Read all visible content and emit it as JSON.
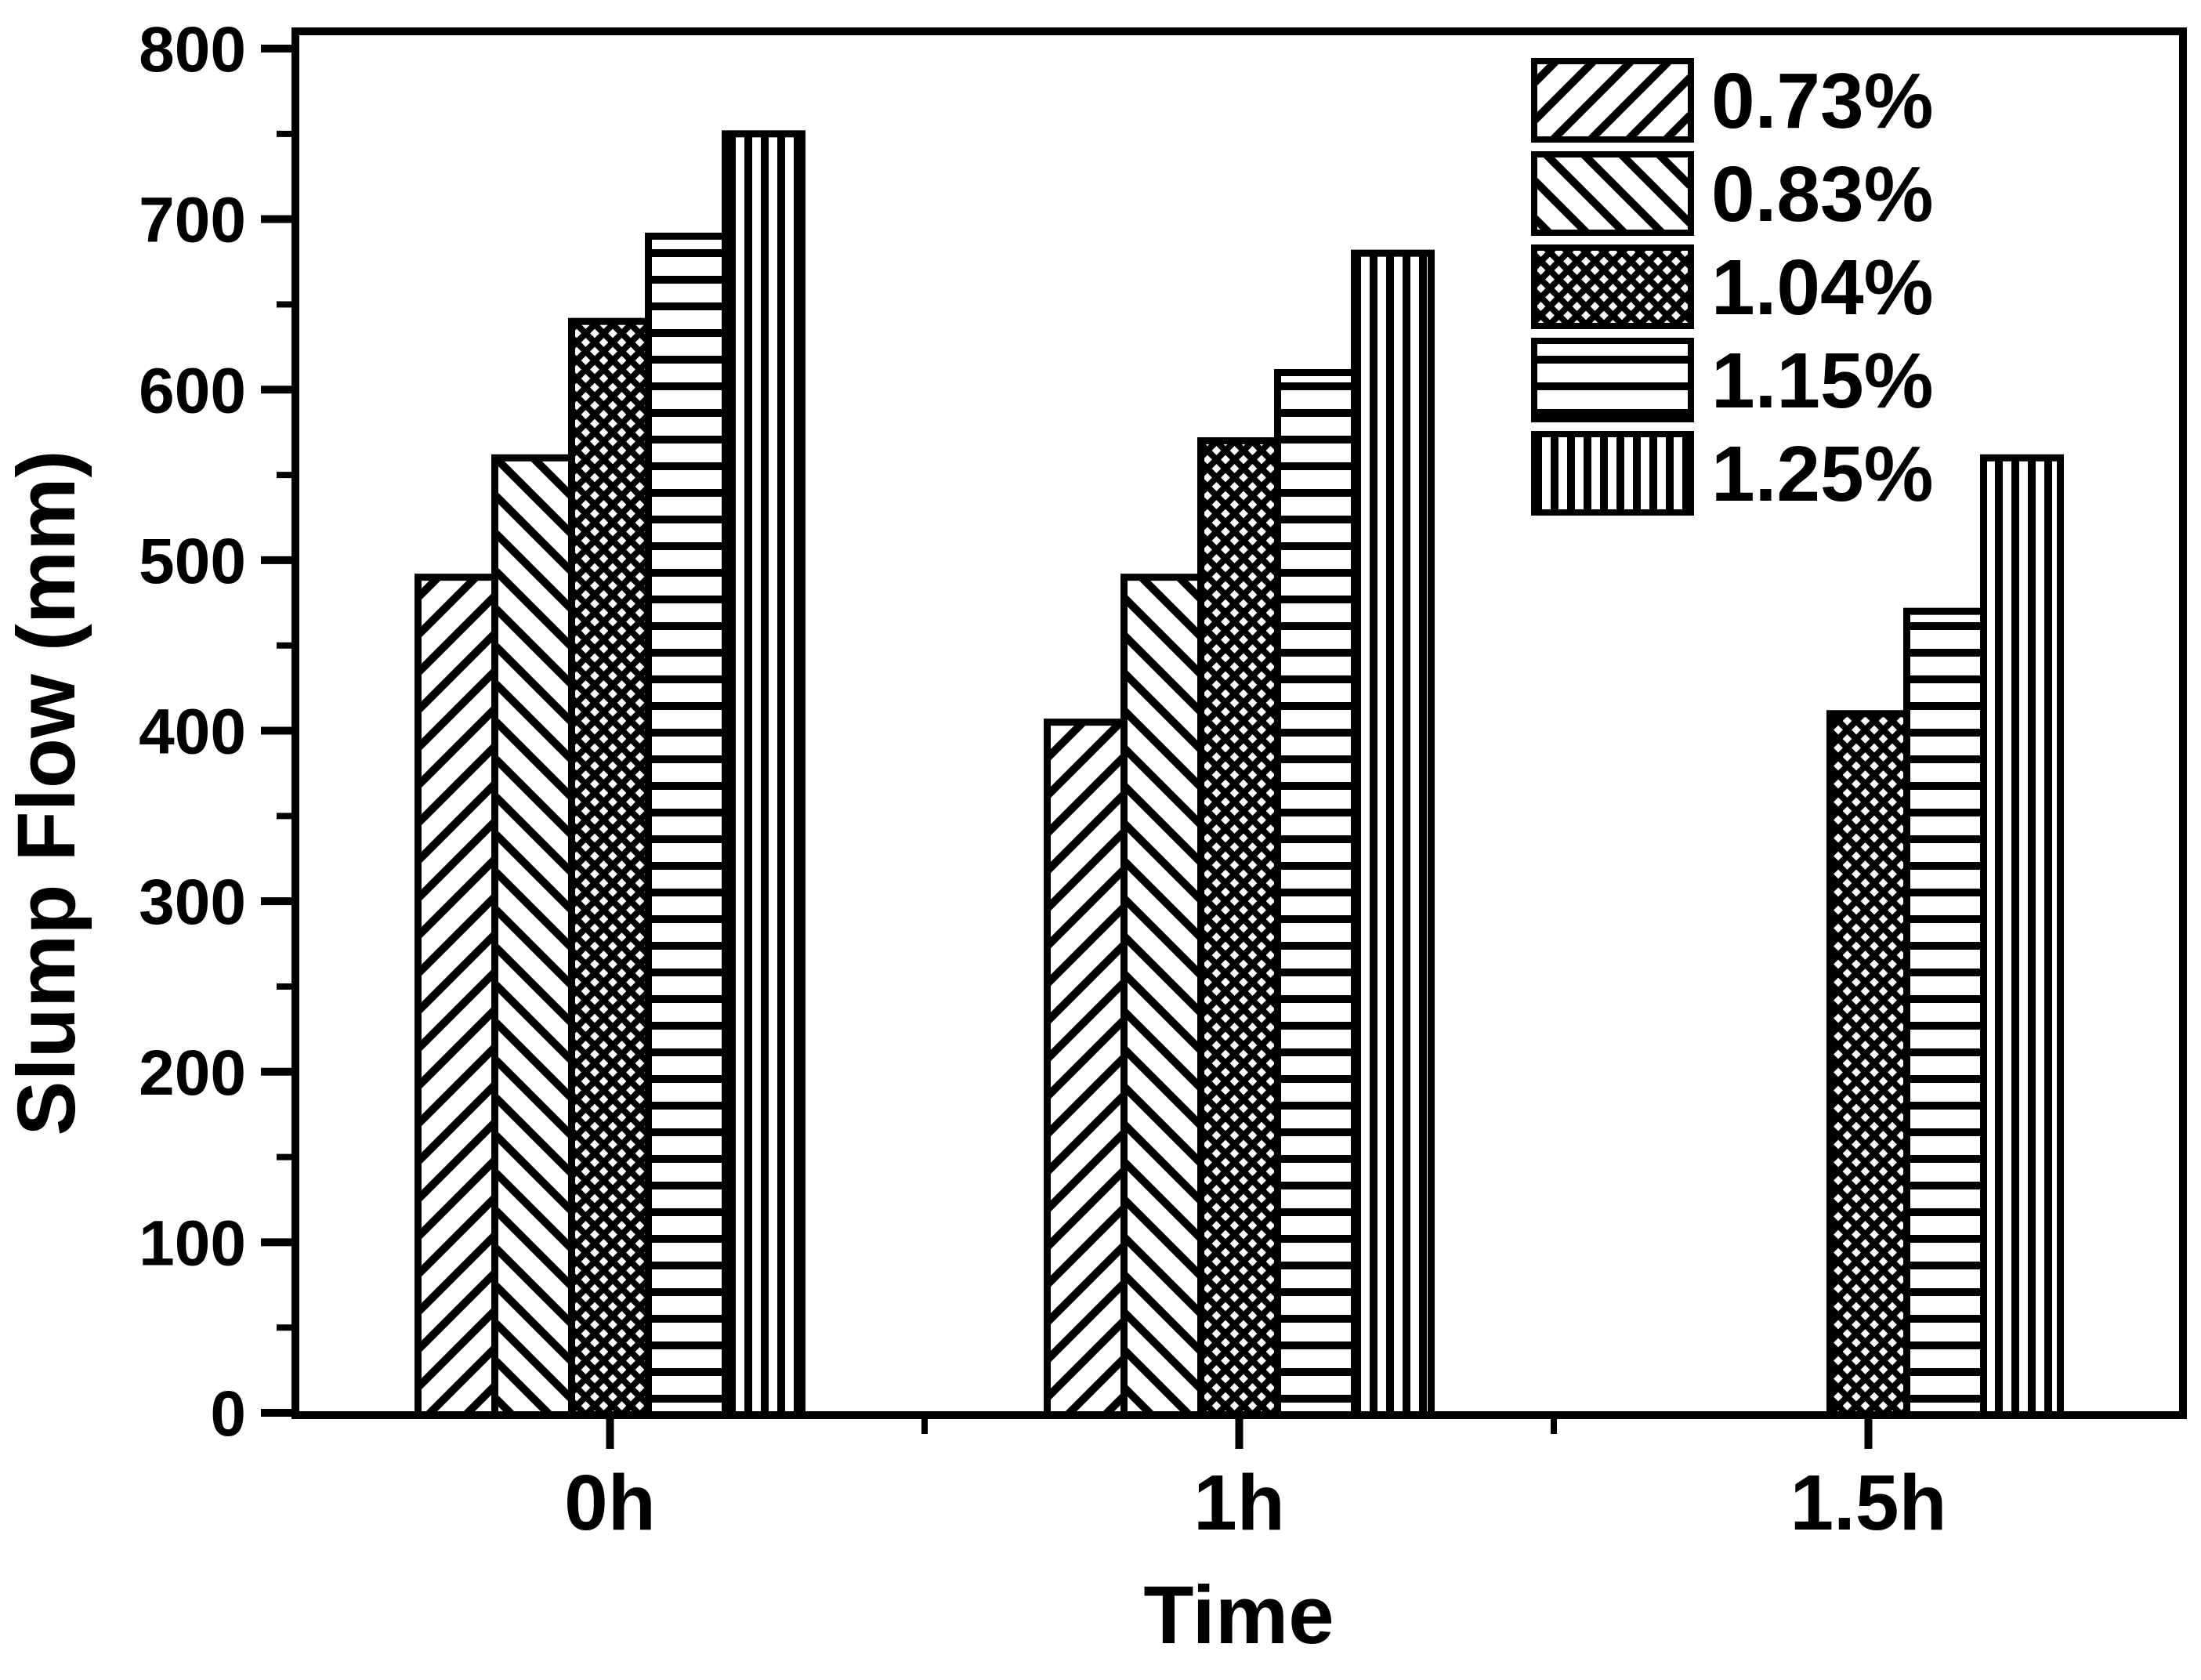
{
  "chart_data": {
    "type": "bar",
    "title": "",
    "xlabel": "Time",
    "ylabel": "Slump Flow (mm)",
    "categories": [
      "0h",
      "1h",
      "1.5h"
    ],
    "series": [
      {
        "name": "0.73%",
        "pattern": "diagonal-up",
        "values": [
          490,
          405,
          null
        ]
      },
      {
        "name": "0.83%",
        "pattern": "diagonal-down",
        "values": [
          560,
          490,
          null
        ]
      },
      {
        "name": "1.04%",
        "pattern": "crosshatch",
        "values": [
          640,
          570,
          410
        ]
      },
      {
        "name": "1.15%",
        "pattern": "horizontal",
        "values": [
          690,
          610,
          470
        ]
      },
      {
        "name": "1.25%",
        "pattern": "vertical",
        "values": [
          750,
          680,
          560
        ]
      }
    ],
    "ylim": [
      0,
      800
    ],
    "yticks": [
      0,
      100,
      200,
      300,
      400,
      500,
      600,
      700,
      800
    ],
    "ytick_minor_interval": 50,
    "legend_position": "top-right",
    "legend_frame": false,
    "grid": false,
    "colors": {
      "ink": "#000000",
      "background": "#ffffff"
    }
  }
}
